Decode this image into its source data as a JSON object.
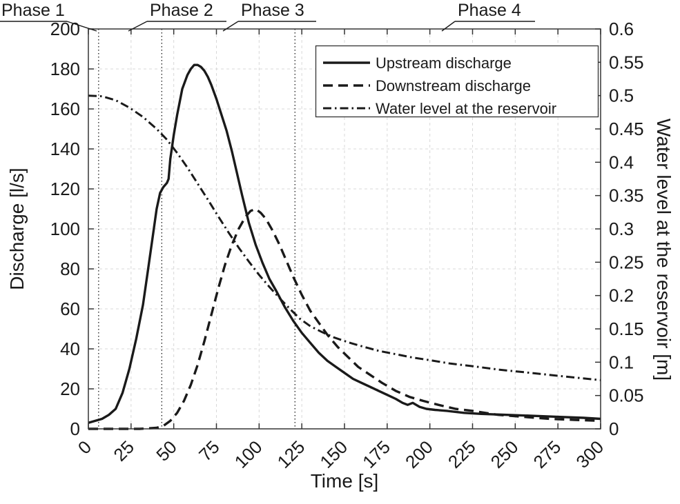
{
  "figure": {
    "background": "#ffffff"
  },
  "chart_data": {
    "type": "line",
    "title": "",
    "xlabel": "Time [s]",
    "ylabel_left": "Discharge [l/s]",
    "ylabel_right": "Water level at the reservoir [m]",
    "xlim": [
      0,
      300
    ],
    "ylim_left": [
      0,
      200
    ],
    "ylim_right": [
      0,
      0.6
    ],
    "xticks": {
      "values": [
        0,
        25,
        50,
        75,
        100,
        125,
        150,
        175,
        200,
        225,
        250,
        275,
        300
      ],
      "labels": [
        "0",
        "25",
        "50",
        "75",
        "100",
        "125",
        "150",
        "175",
        "200",
        "225",
        "250",
        "275",
        "300"
      ]
    },
    "yticks_left": {
      "values": [
        0,
        20,
        40,
        60,
        80,
        100,
        120,
        140,
        160,
        180,
        200
      ],
      "labels": [
        "0",
        "20",
        "40",
        "60",
        "80",
        "100",
        "120",
        "140",
        "160",
        "180",
        "200"
      ]
    },
    "yticks_right": {
      "values": [
        0,
        0.05,
        0.1,
        0.15,
        0.2,
        0.25,
        0.3,
        0.35,
        0.4,
        0.45,
        0.5,
        0.55,
        0.6
      ],
      "labels": [
        "0",
        "0.05",
        "0.1",
        "0.15",
        "0.2",
        "0.25",
        "0.3",
        "0.35",
        "0.4",
        "0.45",
        "0.5",
        "0.55",
        "0.6"
      ]
    },
    "grid": true,
    "grid_style": "dashed",
    "legend": {
      "position": "upper-right-inside",
      "entries": [
        "Upstream discharge",
        "Downstream discharge",
        "Water level at the reservoir"
      ]
    },
    "phase_boundaries_s": [
      6,
      43,
      121
    ],
    "phases": [
      {
        "label": "Phase 1"
      },
      {
        "label": "Phase 2"
      },
      {
        "label": "Phase 3"
      },
      {
        "label": "Phase 4"
      }
    ],
    "colors": {
      "line": "#1a1a1a",
      "axis": "#333333",
      "grid": "#d8d8d8"
    },
    "series": [
      {
        "name": "Upstream discharge",
        "axis": "left",
        "line_style": "solid",
        "color": "#1a1a1a",
        "x": [
          0,
          4,
          8,
          12,
          16,
          20,
          24,
          28,
          32,
          35,
          38,
          40,
          42,
          44,
          46,
          47,
          48,
          50,
          52,
          55,
          58,
          60,
          62,
          64,
          66,
          68,
          70,
          72,
          75,
          78,
          81,
          84,
          87,
          90,
          94,
          98,
          102,
          106,
          110,
          115,
          120,
          125,
          130,
          135,
          140,
          145,
          150,
          155,
          160,
          165,
          170,
          175,
          180,
          184,
          187,
          190,
          194,
          198,
          203,
          210,
          220,
          230,
          245,
          260,
          275,
          290,
          300
        ],
        "y": [
          3,
          4,
          5,
          7,
          10,
          18,
          30,
          45,
          62,
          80,
          98,
          110,
          118,
          121,
          123,
          125,
          135,
          147,
          157,
          170,
          177,
          180,
          182,
          182,
          181,
          179,
          176,
          172,
          165,
          157,
          149,
          139,
          128,
          117,
          103,
          92,
          83,
          75,
          69,
          61,
          54,
          48,
          43,
          38,
          34,
          31,
          28,
          25,
          23,
          21,
          19,
          17,
          15,
          13,
          12,
          13,
          11,
          10,
          9.5,
          9,
          8,
          7.5,
          7,
          6.5,
          6,
          5.5,
          5
        ]
      },
      {
        "name": "Downstream discharge",
        "axis": "left",
        "line_style": "dashed",
        "color": "#1a1a1a",
        "x": [
          0,
          30,
          40,
          44,
          48,
          52,
          56,
          60,
          64,
          68,
          72,
          76,
          80,
          84,
          88,
          92,
          95,
          98,
          101,
          104,
          108,
          112,
          116,
          120,
          125,
          130,
          135,
          140,
          146,
          152,
          158,
          165,
          172,
          180,
          188,
          196,
          205,
          215,
          225,
          240,
          255,
          270,
          285,
          300
        ],
        "y": [
          0,
          0,
          0.5,
          1.5,
          4,
          8,
          14,
          22,
          32,
          44,
          57,
          70,
          82,
          92,
          100,
          106,
          109,
          110,
          108,
          105,
          99,
          92,
          84,
          76,
          67,
          59,
          53,
          47,
          41,
          36,
          31,
          27,
          23,
          19,
          16,
          14,
          12,
          10,
          9,
          7,
          6,
          5,
          4.5,
          4
        ]
      },
      {
        "name": "Water level at the reservoir",
        "axis": "right",
        "line_style": "dashdot",
        "color": "#1a1a1a",
        "x": [
          0,
          8,
          16,
          24,
          32,
          40,
          46,
          52,
          58,
          64,
          70,
          76,
          82,
          88,
          94,
          100,
          106,
          112,
          118,
          124,
          130,
          137,
          144,
          152,
          160,
          170,
          180,
          190,
          200,
          212,
          225,
          240,
          255,
          270,
          285,
          300
        ],
        "y": [
          0.5,
          0.499,
          0.493,
          0.482,
          0.468,
          0.45,
          0.434,
          0.414,
          0.392,
          0.368,
          0.344,
          0.319,
          0.295,
          0.272,
          0.251,
          0.231,
          0.213,
          0.196,
          0.18,
          0.165,
          0.154,
          0.145,
          0.137,
          0.13,
          0.124,
          0.117,
          0.112,
          0.107,
          0.103,
          0.098,
          0.094,
          0.089,
          0.085,
          0.081,
          0.077,
          0.073
        ]
      }
    ]
  }
}
